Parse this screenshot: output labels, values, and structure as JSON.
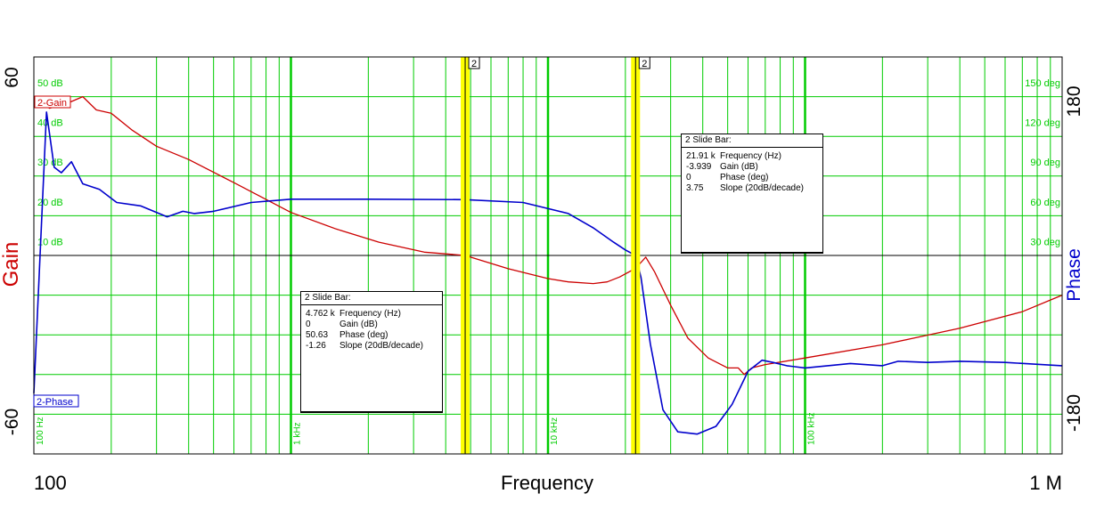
{
  "chart_data": {
    "type": "line",
    "xlabel": "Frequency",
    "x_scale": "log",
    "xlim": [
      100,
      1000000
    ],
    "x_end_labels": [
      "100",
      "1 M"
    ],
    "x_decade_labels": [
      "100 Hz",
      "1 kHz",
      "10 kHz",
      "100 kHz"
    ],
    "left_axis": {
      "label": "Gain",
      "ylim": [
        -60,
        60
      ],
      "end_labels": [
        "60",
        "-60"
      ],
      "color": "#cc0000",
      "tick_labels": [
        "50 dB",
        "40 dB",
        "30 dB",
        "20 dB",
        "10 dB"
      ]
    },
    "right_axis": {
      "label": "Phase",
      "ylim": [
        -180,
        180
      ],
      "end_labels": [
        "180",
        "-180"
      ],
      "color": "#0000cc",
      "tick_labels": [
        "150 deg",
        "120 deg",
        "90 deg",
        "60 deg",
        "30 deg"
      ]
    },
    "grid": true,
    "grid_color": "#00cc00",
    "series": [
      {
        "name": "2-Gain",
        "axis": "left",
        "color": "#cc0000",
        "x": [
          100,
          115,
          135,
          155,
          175,
          200,
          240,
          300,
          400,
          600,
          1000,
          1500,
          2200,
          3300,
          4762,
          7000,
          10000,
          12000,
          15000,
          17000,
          19000,
          21910,
          24000,
          26000,
          30000,
          35000,
          42000,
          50000,
          55000,
          58000,
          62000,
          70000,
          100000,
          200000,
          400000,
          700000,
          1000000
        ],
        "values": [
          48,
          44.5,
          46,
          48,
          44,
          43,
          38,
          33,
          29,
          22,
          13,
          8,
          4,
          1,
          0,
          -4,
          -7,
          -8,
          -8.5,
          -8,
          -6.5,
          -3.9,
          -0.5,
          -5,
          -15,
          -25,
          -31,
          -34,
          -34,
          -36,
          -34,
          -33,
          -31,
          -27,
          -22,
          -17,
          -12
        ]
      },
      {
        "name": "2-Phase",
        "axis": "right",
        "color": "#0000cc",
        "x": [
          100,
          112,
          120,
          128,
          140,
          155,
          180,
          210,
          260,
          330,
          380,
          420,
          500,
          700,
          1000,
          2000,
          4762,
          8000,
          12000,
          15000,
          18000,
          20000,
          21910,
          23000,
          25000,
          28000,
          32000,
          38000,
          45000,
          52000,
          60000,
          68000,
          75000,
          85000,
          100000,
          150000,
          200000,
          230000,
          300000,
          400000,
          600000,
          1000000
        ],
        "values": [
          -125,
          130,
          80,
          75,
          85,
          65,
          60,
          48,
          45,
          35,
          40,
          38,
          40,
          48,
          51,
          51,
          50.6,
          48,
          38,
          25,
          12,
          5,
          0,
          -20,
          -80,
          -140,
          -160,
          -162,
          -155,
          -135,
          -105,
          -95,
          -97,
          -100,
          -102,
          -98,
          -100,
          -96,
          -97,
          -96,
          -97,
          -100
        ]
      }
    ],
    "slide_bars": [
      {
        "header": "2 Slide Bar:",
        "marker": "2",
        "frequency_hz": 4762,
        "rows": [
          [
            "4.762 k",
            "Frequency (Hz)"
          ],
          [
            "0",
            "Gain (dB)"
          ],
          [
            "50.63",
            "Phase (deg)"
          ],
          [
            "-1.26",
            "Slope (20dB/decade)"
          ]
        ]
      },
      {
        "header": "2 Slide Bar:",
        "marker": "2",
        "frequency_hz": 21910,
        "rows": [
          [
            "21.91 k",
            "Frequency (Hz)"
          ],
          [
            "-3.939",
            "Gain (dB)"
          ],
          [
            "0",
            "Phase (deg)"
          ],
          [
            "3.75",
            "Slope (20dB/decade)"
          ]
        ]
      }
    ]
  }
}
